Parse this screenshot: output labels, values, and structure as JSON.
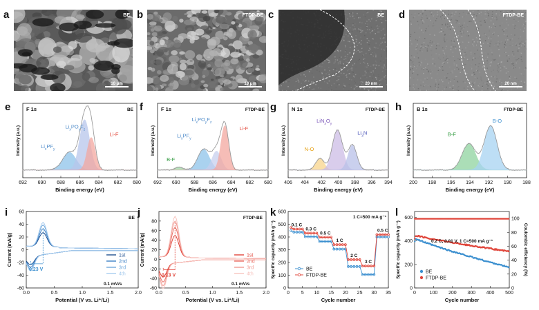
{
  "sem": [
    {
      "letter": "a",
      "label": "BE",
      "scale": "10 μm",
      "kind": "sem"
    },
    {
      "letter": "b",
      "label": "FTDP-BE",
      "scale": "10 μm",
      "kind": "sem"
    },
    {
      "letter": "c",
      "label": "BE",
      "scale": "20 nm",
      "kind": "tem"
    },
    {
      "letter": "d",
      "label": "FTDP-BE",
      "scale": "20 nm",
      "kind": "tem"
    }
  ],
  "xps": [
    {
      "letter": "e",
      "element": "F 1s",
      "sample": "BE",
      "xmax": 692,
      "xmin": 680,
      "ticks": [
        692,
        690,
        688,
        686,
        684,
        682,
        680
      ],
      "xlabel": "Binding energy (eV)",
      "ylabel": "Intensity (a.u.)",
      "peaks": [
        {
          "name": "LixPFy",
          "center": 687.1,
          "height": 0.3,
          "width": 1.0,
          "color": "#8ec3ea",
          "lx": 0.22,
          "ly": 0.6,
          "lcolor": "#4a88c8"
        },
        {
          "name": "LixPOyFz",
          "center": 685.5,
          "height": 0.85,
          "width": 0.75,
          "color": "#b8c6ec",
          "lx": 0.46,
          "ly": 0.34,
          "lcolor": "#4a88c8"
        },
        {
          "name": "Li-F",
          "center": 684.8,
          "height": 0.55,
          "width": 0.6,
          "color": "#f3a7a0",
          "lx": 0.8,
          "ly": 0.44,
          "lcolor": "#e24a3c"
        }
      ]
    },
    {
      "letter": "f",
      "element": "F 1s",
      "sample": "FTDP-BE",
      "xmax": 692,
      "xmin": 680,
      "ticks": [
        692,
        690,
        688,
        686,
        684,
        682,
        680
      ],
      "xlabel": "Binding energy (eV)",
      "ylabel": "Intensity (a.u.)",
      "peaks": [
        {
          "name": "B-F",
          "center": 689.7,
          "height": 0.05,
          "width": 0.6,
          "color": "#9fd9a6",
          "lx": 0.12,
          "ly": 0.78,
          "lcolor": "#2f9a3e"
        },
        {
          "name": "LixPFy",
          "center": 687.0,
          "height": 0.35,
          "width": 0.9,
          "color": "#8ec3ea",
          "lx": 0.24,
          "ly": 0.46,
          "lcolor": "#4a88c8"
        },
        {
          "name": "LixPOyFz",
          "center": 685.6,
          "height": 0.32,
          "width": 0.7,
          "color": "#c7cfee",
          "lx": 0.4,
          "ly": 0.24,
          "lcolor": "#4a88c8"
        },
        {
          "name": "Li-F",
          "center": 684.7,
          "height": 0.75,
          "width": 0.6,
          "color": "#f3a7a0",
          "lx": 0.78,
          "ly": 0.36,
          "lcolor": "#e24a3c"
        }
      ]
    },
    {
      "letter": "g",
      "element": "N 1s",
      "sample": "FTDP-BE",
      "xmax": 406,
      "xmin": 394,
      "ticks": [
        406,
        404,
        402,
        400,
        398,
        396,
        394
      ],
      "xlabel": "Binding energy (eV)",
      "ylabel": "Intensity (a.u.)",
      "peaks": [
        {
          "name": "N-O",
          "center": 402.2,
          "height": 0.2,
          "width": 0.7,
          "color": "#f9d58c",
          "lx": 0.21,
          "ly": 0.64,
          "lcolor": "#e5a012"
        },
        {
          "name": "LiNxOy",
          "center": 400.1,
          "height": 0.68,
          "width": 0.85,
          "color": "#cdbde6",
          "lx": 0.36,
          "ly": 0.26,
          "lcolor": "#7a55b8"
        },
        {
          "name": "Li3N",
          "center": 398.3,
          "height": 0.42,
          "width": 0.75,
          "color": "#b9c1e9",
          "lx": 0.74,
          "ly": 0.42,
          "lcolor": "#4a55b8"
        }
      ]
    },
    {
      "letter": "h",
      "element": "B 1s",
      "sample": "FTDP-BE",
      "xmax": 200,
      "xmin": 188,
      "ticks": [
        200,
        198,
        196,
        194,
        192,
        190,
        188
      ],
      "xlabel": "Binding energy (eV)",
      "ylabel": "Intensity (a.u.)",
      "peaks": [
        {
          "name": "B-F",
          "center": 194.1,
          "height": 0.45,
          "width": 1.0,
          "color": "#8fd4a0",
          "lx": 0.34,
          "ly": 0.44,
          "lcolor": "#2f9a3e"
        },
        {
          "name": "B-O",
          "center": 191.8,
          "height": 0.75,
          "width": 0.95,
          "color": "#a7d4f2",
          "lx": 0.74,
          "ly": 0.26,
          "lcolor": "#3b8fcf"
        }
      ]
    }
  ],
  "cv": [
    {
      "letter": "i",
      "sample": "BE",
      "xmin": 0,
      "xmax": 2,
      "xticks": [
        "0.0",
        "0.5",
        "1.0",
        "1.5",
        "2.0"
      ],
      "ymin": -60,
      "ymax": 60,
      "yticks": [
        60,
        40,
        20,
        0,
        -20,
        -40,
        -60
      ],
      "xlabel": "Potential (V vs. Li⁺/Li)",
      "ylabel": "Current (mA/g)",
      "legend": [
        "1st",
        "2nd",
        "3rd",
        "4th"
      ],
      "colors": [
        "#1f4f8f",
        "#3b7fc4",
        "#6fa8dc",
        "#a9cdef"
      ],
      "rate": "0.1 mV/s",
      "marker": "0.23 V",
      "marker_color": "#3b8fcf",
      "amps": [
        22,
        28,
        34,
        38
      ]
    },
    {
      "letter": "j",
      "sample": "FTDP-BE",
      "xmin": 0,
      "xmax": 2,
      "xticks": [
        "0.0",
        "0.5",
        "1.0",
        "1.5",
        "2.0"
      ],
      "ymin": -60,
      "ymax": 100,
      "yticks": [
        80,
        60,
        40,
        20,
        0,
        -20,
        -40,
        -60
      ],
      "xlabel": "Potential (V vs. Li⁺/Li)",
      "ylabel": "Current (mA/g)",
      "legend": [
        "1st",
        "2nd",
        "3rd",
        "4th"
      ],
      "colors": [
        "#e0453a",
        "#e97066",
        "#f19a92",
        "#f7c4bf"
      ],
      "rate": "0.1 mV/s",
      "marker": "0.13 V",
      "marker_color": "#e0453a",
      "amps": [
        45,
        62,
        75,
        85
      ]
    }
  ],
  "rate": {
    "letter": "k",
    "title": "1 C=500 mA g⁻¹",
    "xlabel": "Cycle number",
    "ylabel": "Specific capacity (mAh g⁻¹)",
    "xmin": 0,
    "xmax": 35,
    "xticks": [
      0,
      5,
      10,
      15,
      20,
      25,
      30,
      35
    ],
    "ymin": 0,
    "ymax": 600,
    "yticks": [
      0,
      100,
      200,
      300,
      400,
      500,
      600
    ],
    "legend": [
      "BE",
      "FTDP-BE"
    ],
    "colors": [
      "#3b8fcf",
      "#e0453a"
    ],
    "steps": [
      {
        "label": "0.1 C",
        "be": 438,
        "ftdp": 462
      },
      {
        "label": "0.3 C",
        "be": 402,
        "ftdp": 430
      },
      {
        "label": "0.5 C",
        "be": 365,
        "ftdp": 398
      },
      {
        "label": "1 C",
        "be": 305,
        "ftdp": 340
      },
      {
        "label": "2 C",
        "be": 168,
        "ftdp": 222
      },
      {
        "label": "3 C",
        "be": 105,
        "ftdp": 172
      },
      {
        "label": "0.5 C",
        "be": 400,
        "ftdp": 418
      }
    ]
  },
  "cycle": {
    "letter": "l",
    "title": "0.2 C, 0.01 V, 1 C=500 mA g⁻¹",
    "xlabel": "Cycle number",
    "ylabel": "Specific capacity (mAh g⁻¹)",
    "y2label": "Coulombic efficiency (%)",
    "xmin": 0,
    "xmax": 500,
    "xticks": [
      0,
      100,
      200,
      300,
      400,
      500
    ],
    "ymin": 0,
    "ymax": 650,
    "yticks": [
      0,
      200,
      400,
      600
    ],
    "y2ticks": [
      0,
      20,
      40,
      60,
      80,
      100
    ],
    "legend": [
      "BE",
      "FTDP-BE"
    ],
    "colors": [
      "#3b8fcf",
      "#e0453a"
    ],
    "be_start": 425,
    "be_end": 175,
    "ftdp_start": 450,
    "ftdp_end": 310,
    "ce": 99.5
  }
}
